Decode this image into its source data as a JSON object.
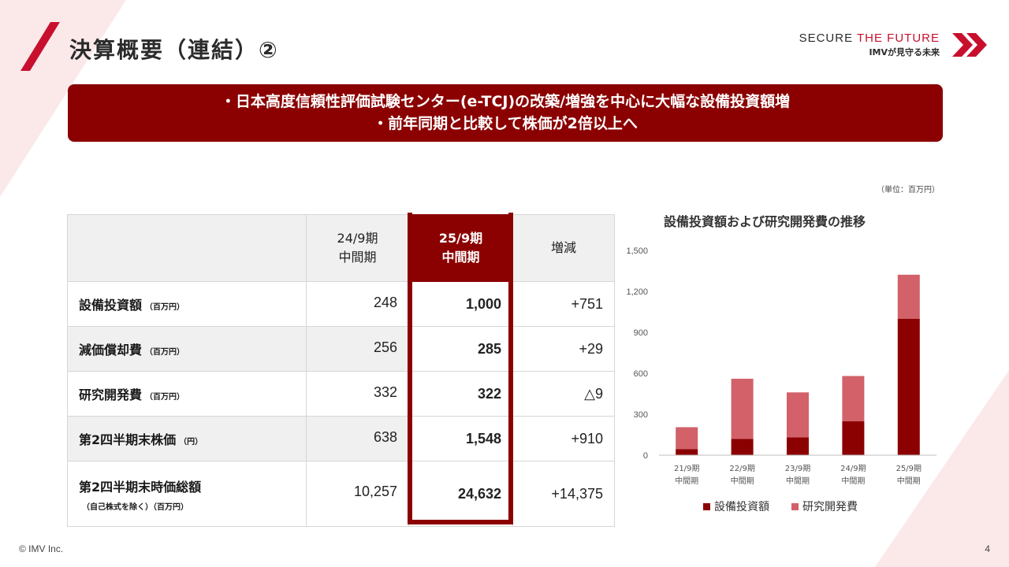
{
  "header": {
    "title": "決算概要（連結）②",
    "brand_main_a": "SECURE ",
    "brand_main_b": "THE FUTURE",
    "brand_sub": "IMVが見守る未来"
  },
  "banner": {
    "line1": "・日本高度信頼性評価試験センター(e-TCJ)の改築/増強を中心に大幅な設備投資額増",
    "line2": "・前年同期と比較して株価が2倍以上へ"
  },
  "unit_note": "（単位：百万円）",
  "table": {
    "headers": [
      "24/9期\n中間期",
      "25/9期\n中間期",
      "増減"
    ],
    "header_prev_1": "24/9期",
    "header_prev_2": "中間期",
    "header_cur_1": "25/9期",
    "header_cur_2": "中間期",
    "header_diff": "増減",
    "rows": [
      {
        "label": "設備投資額",
        "unit": "（百万円）",
        "prev": "248",
        "cur": "1,000",
        "diff": "+751"
      },
      {
        "label": "減価償却費",
        "unit": "（百万円）",
        "prev": "256",
        "cur": "285",
        "diff": "+29"
      },
      {
        "label": "研究開発費",
        "unit": "（百万円）",
        "prev": "332",
        "cur": "322",
        "diff": "△9"
      },
      {
        "label": "第2四半期末株価",
        "unit": "（円）",
        "prev": "638",
        "cur": "1,548",
        "diff": "+910"
      },
      {
        "label": "第2四半期末時価総額",
        "unit": "（自己株式を除く）（百万円）",
        "prev": "10,257",
        "cur": "24,632",
        "diff": "+14,375"
      }
    ]
  },
  "chart_data": {
    "type": "bar",
    "stacked": true,
    "title": "設備投資額および研究開発費の推移",
    "categories": [
      "21/9期\n中間期",
      "22/9期\n中間期",
      "23/9期\n中間期",
      "24/9期\n中間期",
      "25/9期\n中間期"
    ],
    "category_line1": [
      "21/9期",
      "22/9期",
      "23/9期",
      "24/9期",
      "25/9期"
    ],
    "category_line2": [
      "中間期",
      "中間期",
      "中間期",
      "中間期",
      "中間期"
    ],
    "series": [
      {
        "name": "設備投資額",
        "values": [
          45,
          120,
          130,
          248,
          1000
        ],
        "color": "#8b0000"
      },
      {
        "name": "研究開発費",
        "values": [
          160,
          440,
          330,
          332,
          322
        ],
        "color": "#d2616a"
      }
    ],
    "ylim": [
      0,
      1500
    ],
    "yticks": [
      0,
      300,
      600,
      900,
      1200,
      1500
    ],
    "ytick_labels": [
      "0",
      "300",
      "600",
      "900",
      "1,200",
      "1,500"
    ],
    "grid": false,
    "legend": "bottom"
  },
  "footer": {
    "copyright": "© IMV Inc.",
    "page": "4"
  },
  "colors": {
    "accent": "#8b0000",
    "accent_light": "#d2616a",
    "brand_red": "#c8102e"
  }
}
